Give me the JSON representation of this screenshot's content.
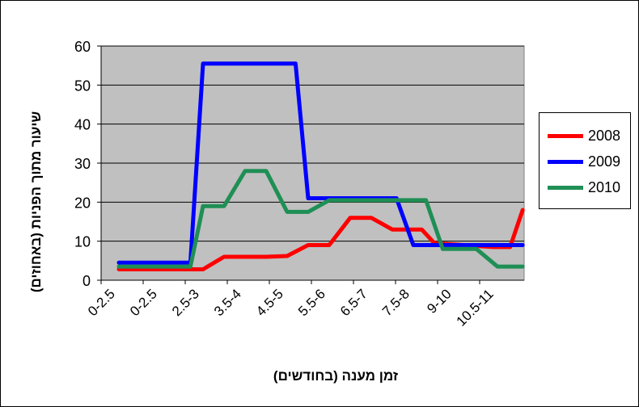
{
  "chart_data": {
    "type": "line",
    "x": [
      "0-2.5",
      "0-2.5",
      "2.5-3",
      "3.5-4",
      "4.5-5",
      "5.5-6",
      "6.5-7",
      "7.5-8",
      "9-10",
      "10.5-11"
    ],
    "xlabel": "זמן מענה (בחודשים)",
    "ylabel": "שיעור מתוך הפניות (באחוזים)",
    "ylim": [
      0,
      60
    ],
    "yticks": [
      0,
      10,
      20,
      30,
      40,
      50,
      60
    ],
    "grid": true,
    "legend_position": "right",
    "plot_background": "#c0c0c0",
    "series": [
      {
        "name": "2008",
        "color": "#ff0000",
        "points": [
          [
            0,
            2.8
          ],
          [
            1,
            2.8
          ],
          [
            2,
            2.8
          ],
          [
            2.5,
            6
          ],
          [
            3.5,
            6
          ],
          [
            4,
            6.2
          ],
          [
            4.5,
            9
          ],
          [
            5,
            9
          ],
          [
            5.5,
            16
          ],
          [
            6,
            16
          ],
          [
            6.5,
            13
          ],
          [
            7.2,
            13
          ],
          [
            7.5,
            9.5
          ],
          [
            8.9,
            8.5
          ],
          [
            9.3,
            8.5
          ],
          [
            9.6,
            18
          ]
        ]
      },
      {
        "name": "2009",
        "color": "#0000ff",
        "points": [
          [
            0,
            4.5
          ],
          [
            1.7,
            4.5
          ],
          [
            2,
            55.5
          ],
          [
            4.2,
            55.5
          ],
          [
            4.5,
            21
          ],
          [
            6.6,
            21
          ],
          [
            7,
            9
          ],
          [
            8.5,
            9
          ],
          [
            9.6,
            9
          ]
        ]
      },
      {
        "name": "2010",
        "color": "#1f8f55",
        "points": [
          [
            0,
            3.5
          ],
          [
            1.7,
            3.5
          ],
          [
            2,
            19
          ],
          [
            2.5,
            19
          ],
          [
            3,
            28
          ],
          [
            3.5,
            28
          ],
          [
            4,
            17.5
          ],
          [
            4.5,
            17.5
          ],
          [
            5,
            20.5
          ],
          [
            7.3,
            20.5
          ],
          [
            7.7,
            8
          ],
          [
            8.5,
            8
          ],
          [
            9,
            3.5
          ],
          [
            9.6,
            3.5
          ]
        ]
      }
    ]
  }
}
